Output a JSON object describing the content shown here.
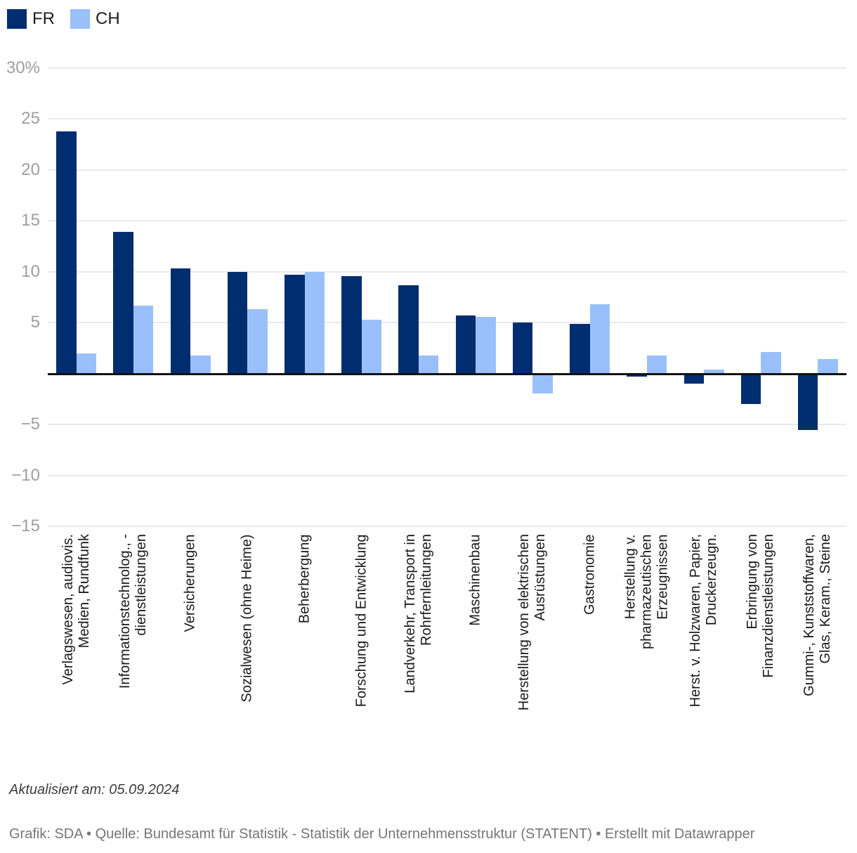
{
  "legend": {
    "items": [
      {
        "label": "FR",
        "color": "#002d70"
      },
      {
        "label": "CH",
        "color": "#9ac0fb"
      }
    ]
  },
  "chart_data": {
    "type": "bar",
    "title": "",
    "categories": [
      "Verlagswesen, audiovis.\nMedien, Rundfunk",
      "Informationstechnolog., -\ndienstleistungen",
      "Versicherungen",
      "Sozialwesen (ohne Heime)",
      "Beherbergung",
      "Forschung und Entwicklung",
      "Landverkehr, Transport in\nRohrfernleitungen",
      "Maschinenbau",
      "Herstellung von elektrischen\nAusrüstungen",
      "Gastronomie",
      "Herstellung v.\npharmazeutischen\nErzeugnissen",
      "Herst. v. Holzwaren, Papier,\nDruckerzeugn.",
      "Erbringung von\nFinanzdienstleistungen",
      "Gummi-, Kunststoffwaren,\nGlas, Keram., Steine"
    ],
    "series": [
      {
        "name": "FR",
        "color": "#002d70",
        "values": [
          23.8,
          13.9,
          10.3,
          10.0,
          9.7,
          9.6,
          8.7,
          5.7,
          5.0,
          4.9,
          -0.2,
          -0.9,
          -2.9,
          -5.5
        ]
      },
      {
        "name": "CH",
        "color": "#9ac0fb",
        "values": [
          2.0,
          6.7,
          1.8,
          6.3,
          10.0,
          5.3,
          1.8,
          5.6,
          -1.9,
          6.8,
          1.8,
          0.4,
          2.1,
          1.4
        ]
      }
    ],
    "ylim": [
      -15,
      30
    ],
    "yticks": [
      {
        "value": 30,
        "label": "30%"
      },
      {
        "value": 25,
        "label": "25"
      },
      {
        "value": 20,
        "label": "20"
      },
      {
        "value": 15,
        "label": "15"
      },
      {
        "value": 10,
        "label": "10"
      },
      {
        "value": 5,
        "label": "5"
      },
      {
        "value": -5,
        "label": "−5"
      },
      {
        "value": -10,
        "label": "−10"
      },
      {
        "value": -15,
        "label": "−15"
      }
    ],
    "grid": "horizontal",
    "legend_position": "top-left",
    "gridline_color": "#e9e9e9",
    "zero_line_color": "#121212",
    "axis_text_color": "#9e9e9e"
  },
  "footer": {
    "updated": "Aktualisiert am: 05.09.2024",
    "credit": "Grafik: SDA • Quelle: Bundesamt für Statistik - Statistik der Unternehmensstruktur (STATENT) • Erstellt mit Datawrapper"
  }
}
